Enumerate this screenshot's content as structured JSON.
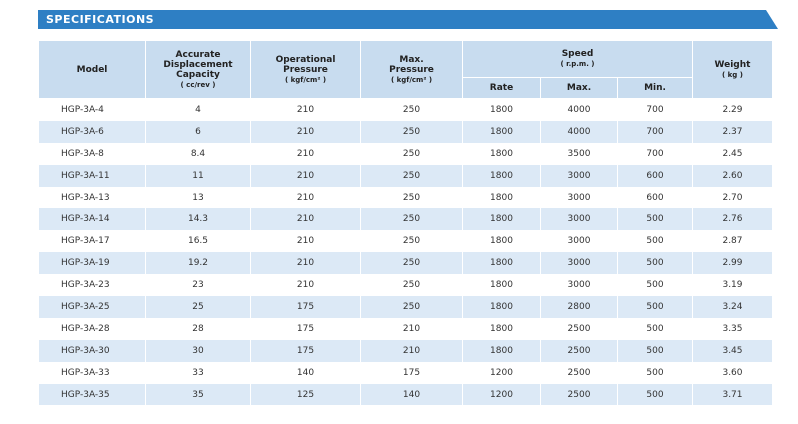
{
  "banner": {
    "title": "SPECIFICATIONS"
  },
  "table": {
    "columns": [
      {
        "lines": [
          "Model"
        ]
      },
      {
        "lines": [
          "Accurate",
          "Displacement",
          "Capacity"
        ],
        "unit": "( cc/rev )"
      },
      {
        "lines": [
          "Operational",
          "Pressure"
        ],
        "unit": "( kgf/cm² )"
      },
      {
        "lines": [
          "Max.",
          "Pressure"
        ],
        "unit": "( kgf/cm² )"
      },
      {
        "lines": [
          "Speed"
        ],
        "unit": "( r.p.m. )",
        "sub": [
          "Rate",
          "Max.",
          "Min."
        ]
      },
      {
        "lines": [
          "Weight"
        ],
        "unit": "( kg )"
      }
    ],
    "rows": [
      [
        "HGP-3A-4",
        "4",
        "210",
        "250",
        "1800",
        "4000",
        "700",
        "2.29"
      ],
      [
        "HGP-3A-6",
        "6",
        "210",
        "250",
        "1800",
        "4000",
        "700",
        "2.37"
      ],
      [
        "HGP-3A-8",
        "8.4",
        "210",
        "250",
        "1800",
        "3500",
        "700",
        "2.45"
      ],
      [
        "HGP-3A-11",
        "11",
        "210",
        "250",
        "1800",
        "3000",
        "600",
        "2.60"
      ],
      [
        "HGP-3A-13",
        "13",
        "210",
        "250",
        "1800",
        "3000",
        "600",
        "2.70"
      ],
      [
        "HGP-3A-14",
        "14.3",
        "210",
        "250",
        "1800",
        "3000",
        "500",
        "2.76"
      ],
      [
        "HGP-3A-17",
        "16.5",
        "210",
        "250",
        "1800",
        "3000",
        "500",
        "2.87"
      ],
      [
        "HGP-3A-19",
        "19.2",
        "210",
        "250",
        "1800",
        "3000",
        "500",
        "2.99"
      ],
      [
        "HGP-3A-23",
        "23",
        "210",
        "250",
        "1800",
        "3000",
        "500",
        "3.19"
      ],
      [
        "HGP-3A-25",
        "25",
        "175",
        "250",
        "1800",
        "2800",
        "500",
        "3.24"
      ],
      [
        "HGP-3A-28",
        "28",
        "175",
        "210",
        "1800",
        "2500",
        "500",
        "3.35"
      ],
      [
        "HGP-3A-30",
        "30",
        "175",
        "210",
        "1800",
        "2500",
        "500",
        "3.45"
      ],
      [
        "HGP-3A-33",
        "33",
        "140",
        "175",
        "1200",
        "2500",
        "500",
        "3.60"
      ],
      [
        "HGP-3A-35",
        "35",
        "125",
        "140",
        "1200",
        "2500",
        "500",
        "3.71"
      ]
    ]
  }
}
